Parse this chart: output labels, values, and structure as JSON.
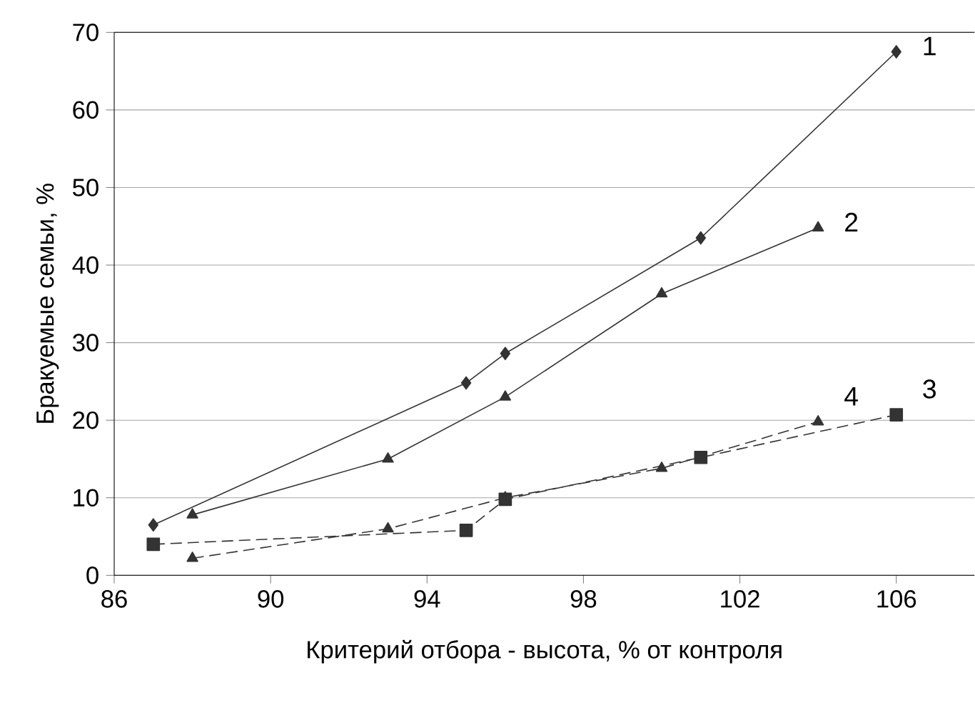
{
  "chart_data": {
    "type": "line",
    "xlabel": "Критерий отбора - высота, % от контроля",
    "ylabel": "Бракуемые семьи, %",
    "xlim": [
      86,
      108
    ],
    "xticks": [
      86,
      90,
      94,
      98,
      102,
      106
    ],
    "ylim": [
      0,
      70
    ],
    "yticks": [
      0,
      10,
      20,
      30,
      40,
      50,
      60,
      70
    ],
    "grid": "y",
    "series": [
      {
        "name": "1",
        "color": "#333333",
        "marker": "diamond",
        "line_style": "solid",
        "x": [
          87,
          95,
          96,
          101,
          106
        ],
        "values": [
          6.5,
          24.8,
          28.6,
          43.5,
          67.5
        ]
      },
      {
        "name": "2",
        "color": "#333333",
        "marker": "triangle",
        "line_style": "solid",
        "x": [
          88,
          93,
          96,
          100,
          104
        ],
        "values": [
          7.8,
          15,
          23,
          36.3,
          44.8
        ]
      },
      {
        "name": "3",
        "color": "#333333",
        "marker": "square",
        "line_style": "dashed",
        "x": [
          87,
          95,
          96,
          101,
          106
        ],
        "values": [
          4,
          5.8,
          9.8,
          15.2,
          20.7
        ]
      },
      {
        "name": "4",
        "color": "#333333",
        "marker": "triangle",
        "line_style": "dashed",
        "x": [
          88,
          93,
          96,
          100,
          104
        ],
        "values": [
          2.2,
          6,
          10,
          13.8,
          19.8
        ]
      }
    ]
  }
}
